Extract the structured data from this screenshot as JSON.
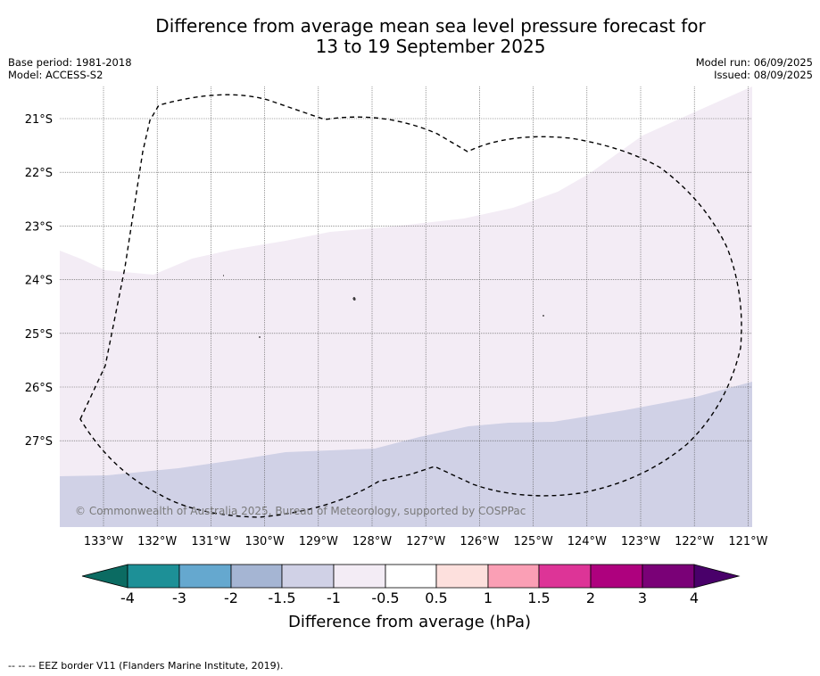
{
  "title_line1": "Difference from average mean sea level pressure forecast for",
  "title_line2": "13 to 19 September 2025",
  "base_period": "Base period: 1981-2018",
  "model": "Model: ACCESS-S2",
  "model_run": "Model run: 06/09/2025",
  "issued": "Issued: 08/09/2025",
  "copyright": "© Commonwealth of Australia 2025, Bureau of Meteorology, supported by COSPPac",
  "lat_labels": [
    "21°S",
    "22°S",
    "23°S",
    "24°S",
    "25°S",
    "26°S",
    "27°S"
  ],
  "lon_labels": [
    "133°W",
    "132°W",
    "131°W",
    "130°W",
    "129°W",
    "128°W",
    "127°W",
    "126°W",
    "125°W",
    "124°W",
    "123°W",
    "122°W",
    "121°W"
  ],
  "colorbar": {
    "ticks": [
      "-4",
      "-3",
      "-2",
      "-1.5",
      "-1",
      "-0.5",
      "0.5",
      "1",
      "1.5",
      "2",
      "3",
      "4"
    ],
    "colors": [
      "#0b6b62",
      "#1d9097",
      "#65a8cf",
      "#a5b5d3",
      "#d0d1e6",
      "#f3ecf5",
      "#ffffff",
      "#fde0dd",
      "#fa9fb5",
      "#dd3497",
      "#ae017e",
      "#7a0177",
      "#49006a"
    ],
    "label": "Difference from average (hPa)"
  },
  "footer": "--  --  -- EEZ border V11 (Flanders Marine Institute, 2019).",
  "map_colors": {
    "band_minus_0_5_to_minus_1": "#f3ecf5",
    "band_minus_1_to_minus_1_5": "#d0d1e6",
    "grid": "#444444",
    "eez_border": "#000000"
  }
}
